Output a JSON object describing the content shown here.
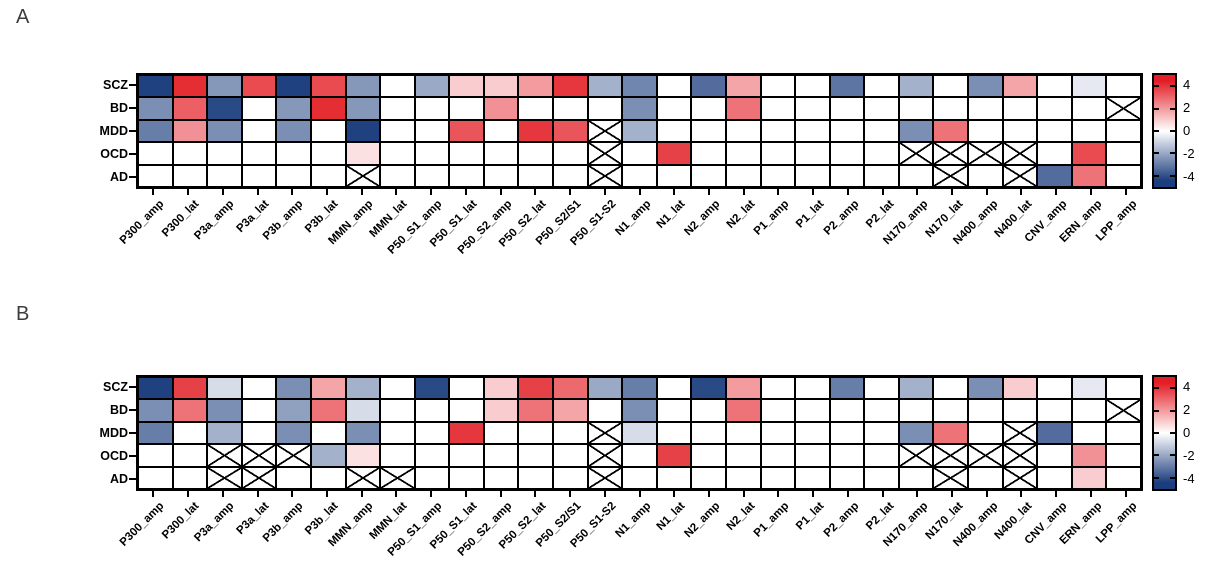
{
  "figure_title": "",
  "excluded_marker_meaning": "cell crossed out (no data / excluded)",
  "colorbar": {
    "tick_labels": [
      "4",
      "2",
      "0",
      "-2",
      "-4"
    ],
    "tick_values": [
      4,
      2,
      0,
      -2,
      -4
    ],
    "max_color": "#e31e26",
    "mid_color": "#ffffff",
    "min_color": "#1b3d7d",
    "saturation_value": 4.5,
    "axis_range": [
      -5,
      5
    ],
    "orientation": "vertical"
  },
  "chart_data": [
    {
      "type": "heatmap",
      "panel_label": "A",
      "rows": [
        "SCZ",
        "BD",
        "MDD",
        "OCD",
        "AD"
      ],
      "columns": [
        "P300_amp",
        "P300_lat",
        "P3a_amp",
        "P3a_lat",
        "P3b_amp",
        "P3b_lat",
        "MMN_amp",
        "MMN_lat",
        "P50_S1_amp",
        "P50_S1_lat",
        "P50_S2_amp",
        "P50_S2_lat",
        "P50_S2/S1",
        "P50_S1-S2",
        "N1_amp",
        "N1_lat",
        "N2_amp",
        "N2_lat",
        "P1_amp",
        "P1_lat",
        "P2_amp",
        "P2_lat",
        "N170_amp",
        "N170_lat",
        "N400_amp",
        "N400_lat",
        "CNV_amp",
        "ERN_amp",
        "LPP_amp"
      ],
      "values_legend": "effect size, x = excluded cell, 0 = white/non-significant",
      "cells": [
        [
          -4.4,
          4.2,
          -2.4,
          3.6,
          -4.4,
          3.6,
          -2.4,
          0,
          -2.0,
          1.0,
          1.0,
          2.0,
          4.0,
          -1.8,
          -2.8,
          0,
          -3.4,
          1.8,
          0,
          0,
          -3.2,
          0,
          -1.8,
          0,
          -2.6,
          1.8,
          0,
          -0.5,
          0
        ],
        [
          -2.6,
          3.2,
          -4.2,
          0,
          -2.4,
          4.2,
          -2.4,
          0,
          0,
          0,
          2.2,
          0,
          0,
          0,
          -2.6,
          0,
          0,
          2.8,
          0,
          0,
          0,
          0,
          0,
          0,
          0,
          0,
          0,
          0,
          "x"
        ],
        [
          -3.0,
          2.2,
          -2.6,
          0,
          -2.6,
          0,
          -4.4,
          0,
          0,
          3.4,
          0,
          4.0,
          3.4,
          "x",
          -1.8,
          0,
          0,
          0,
          0,
          0,
          0,
          0,
          -2.6,
          2.8,
          0,
          0,
          0,
          0,
          0
        ],
        [
          0,
          0,
          0,
          0,
          0,
          0,
          0.6,
          0,
          0,
          0,
          0,
          0,
          0,
          "x",
          0,
          3.8,
          0,
          0,
          0,
          0,
          0,
          0,
          "x",
          "x",
          "x",
          "x",
          0,
          3.6,
          0
        ],
        [
          0,
          0,
          0,
          0,
          0,
          0,
          "x",
          0,
          0,
          0,
          0,
          0,
          0,
          "x",
          0,
          0,
          0,
          0,
          0,
          0,
          0,
          0,
          0,
          "x",
          0,
          "x",
          -3.4,
          2.8,
          0
        ]
      ]
    },
    {
      "type": "heatmap",
      "panel_label": "B",
      "rows": [
        "SCZ",
        "BD",
        "MDD",
        "OCD",
        "AD"
      ],
      "columns": [
        "P300_amp",
        "P300_lat",
        "P3a_amp",
        "P3a_lat",
        "P3b_amp",
        "P3b_lat",
        "MMN_amp",
        "MMN_lat",
        "P50_S1_amp",
        "P50_S1_lat",
        "P50_S2_amp",
        "P50_S2_lat",
        "P50_S2/S1",
        "P50_S1-S2",
        "N1_amp",
        "N1_lat",
        "N2_amp",
        "N2_lat",
        "P1_amp",
        "P1_lat",
        "P2_amp",
        "P2_lat",
        "N170_amp",
        "N170_lat",
        "N400_amp",
        "N400_lat",
        "CNV_amp",
        "ERN_amp",
        "LPP_amp"
      ],
      "values_legend": "effect size, x = excluded cell, 0 = white/non-significant",
      "cells": [
        [
          -4.4,
          3.8,
          -0.8,
          0,
          -2.6,
          1.8,
          -1.8,
          0,
          -4.2,
          0,
          1.0,
          3.8,
          3.0,
          -2.0,
          -3.0,
          0,
          -4.2,
          2.0,
          0,
          0,
          -3.0,
          0,
          -1.8,
          0,
          -2.6,
          1.0,
          0,
          -0.5,
          0
        ],
        [
          -2.6,
          2.8,
          -2.6,
          0,
          -2.2,
          2.8,
          -0.8,
          0,
          0,
          0,
          1.0,
          2.8,
          1.8,
          0,
          -2.6,
          0,
          0,
          2.8,
          0,
          0,
          0,
          0,
          0,
          0,
          0,
          0,
          0,
          0,
          "x"
        ],
        [
          -3.0,
          0,
          -1.8,
          0,
          -2.6,
          0,
          -2.6,
          0,
          0,
          4.0,
          0,
          0,
          0,
          "x",
          -0.8,
          0,
          0,
          0,
          0,
          0,
          0,
          0,
          -2.6,
          2.8,
          0,
          "x",
          -3.4,
          0,
          0
        ],
        [
          0,
          0,
          "x",
          "x",
          "x",
          -1.8,
          0.6,
          0,
          0,
          0,
          0,
          0,
          0,
          "x",
          0,
          3.8,
          0,
          0,
          0,
          0,
          0,
          0,
          "x",
          "x",
          "x",
          "x",
          0,
          2.2,
          0
        ],
        [
          0,
          0,
          "x",
          "x",
          0,
          0,
          "x",
          "x",
          0,
          0,
          0,
          0,
          0,
          "x",
          0,
          0,
          0,
          0,
          0,
          0,
          0,
          0,
          0,
          "x",
          0,
          "x",
          0,
          1.0,
          0
        ]
      ]
    }
  ]
}
